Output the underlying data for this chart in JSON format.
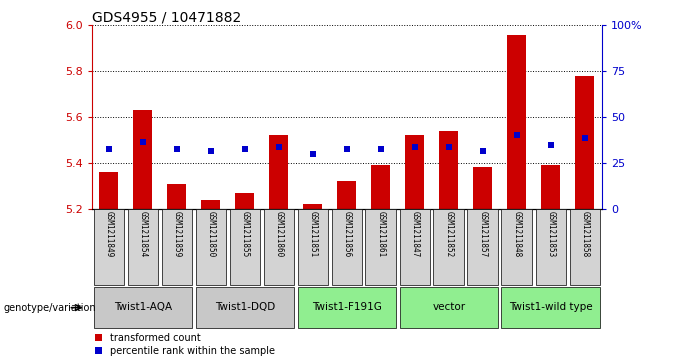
{
  "title": "GDS4955 / 10471882",
  "samples": [
    "GSM1211849",
    "GSM1211854",
    "GSM1211859",
    "GSM1211850",
    "GSM1211855",
    "GSM1211860",
    "GSM1211851",
    "GSM1211856",
    "GSM1211861",
    "GSM1211847",
    "GSM1211852",
    "GSM1211857",
    "GSM1211848",
    "GSM1211853",
    "GSM1211858"
  ],
  "bar_values": [
    5.36,
    5.63,
    5.31,
    5.24,
    5.27,
    5.52,
    5.22,
    5.32,
    5.39,
    5.52,
    5.54,
    5.38,
    5.96,
    5.39,
    5.78
  ],
  "dot_values": [
    5.46,
    5.49,
    5.46,
    5.45,
    5.46,
    5.47,
    5.44,
    5.46,
    5.46,
    5.47,
    5.47,
    5.45,
    5.52,
    5.48,
    5.51
  ],
  "ylim": [
    5.2,
    6.0
  ],
  "yticks": [
    5.2,
    5.4,
    5.6,
    5.8,
    6.0
  ],
  "right_ytick_vals": [
    0,
    25,
    50,
    75,
    100
  ],
  "right_ylabels": [
    "0",
    "25",
    "50",
    "75",
    "100%"
  ],
  "bar_color": "#cc0000",
  "dot_color": "#0000cc",
  "base_value": 5.2,
  "groups": [
    {
      "label": "Twist1-AQA",
      "start": 0,
      "end": 2,
      "color": "#c8c8c8"
    },
    {
      "label": "Twist1-DQD",
      "start": 3,
      "end": 5,
      "color": "#c8c8c8"
    },
    {
      "label": "Twist1-F191G",
      "start": 6,
      "end": 8,
      "color": "#90ee90"
    },
    {
      "label": "vector",
      "start": 9,
      "end": 11,
      "color": "#90ee90"
    },
    {
      "label": "Twist1-wild type",
      "start": 12,
      "end": 14,
      "color": "#90ee90"
    }
  ],
  "legend_label_bar": "transformed count",
  "legend_label_dot": "percentile rank within the sample",
  "genotype_label": "genotype/variation"
}
